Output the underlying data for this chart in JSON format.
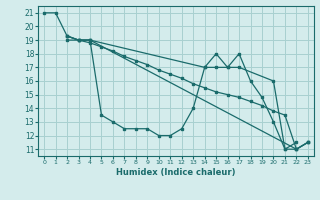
{
  "xlabel": "Humidex (Indice chaleur)",
  "bg_color": "#d4ecec",
  "grid_color": "#a8d0d0",
  "line_color": "#1a6b6b",
  "xlim": [
    -0.5,
    23.5
  ],
  "ylim": [
    10.5,
    21.5
  ],
  "xticks": [
    0,
    1,
    2,
    3,
    4,
    5,
    6,
    7,
    8,
    9,
    10,
    11,
    12,
    13,
    14,
    15,
    16,
    17,
    18,
    19,
    20,
    21,
    22,
    23
  ],
  "yticks": [
    11,
    12,
    13,
    14,
    15,
    16,
    17,
    18,
    19,
    20,
    21
  ],
  "lines": [
    {
      "x": [
        0,
        1,
        2,
        3,
        4,
        5,
        6,
        7,
        8,
        9,
        10,
        11,
        12,
        13,
        14,
        15,
        16,
        17,
        18,
        19,
        20,
        21,
        22
      ],
      "y": [
        21,
        21,
        19.3,
        19,
        19,
        13.5,
        13,
        12.5,
        12.5,
        12.5,
        12,
        12,
        12.5,
        14,
        17,
        18,
        17,
        18,
        16,
        14.8,
        13,
        11,
        11.5
      ]
    },
    {
      "x": [
        2,
        3,
        4,
        22,
        23
      ],
      "y": [
        19.3,
        19,
        19,
        11,
        11.5
      ]
    },
    {
      "x": [
        2,
        3,
        4,
        14,
        15,
        16,
        17,
        20,
        21,
        22,
        23
      ],
      "y": [
        19.3,
        19,
        19,
        17,
        17,
        17,
        17,
        16,
        11,
        11,
        11.5
      ]
    },
    {
      "x": [
        2,
        3,
        4,
        5,
        6,
        7,
        8,
        9,
        10,
        11,
        12,
        13,
        14,
        15,
        16,
        17,
        18,
        19,
        20,
        21,
        22,
        23
      ],
      "y": [
        19,
        19,
        18.8,
        18.5,
        18.2,
        17.8,
        17.5,
        17.2,
        16.8,
        16.5,
        16.2,
        15.8,
        15.5,
        15.2,
        15,
        14.8,
        14.5,
        14.2,
        13.8,
        13.5,
        11,
        11.5
      ]
    }
  ]
}
